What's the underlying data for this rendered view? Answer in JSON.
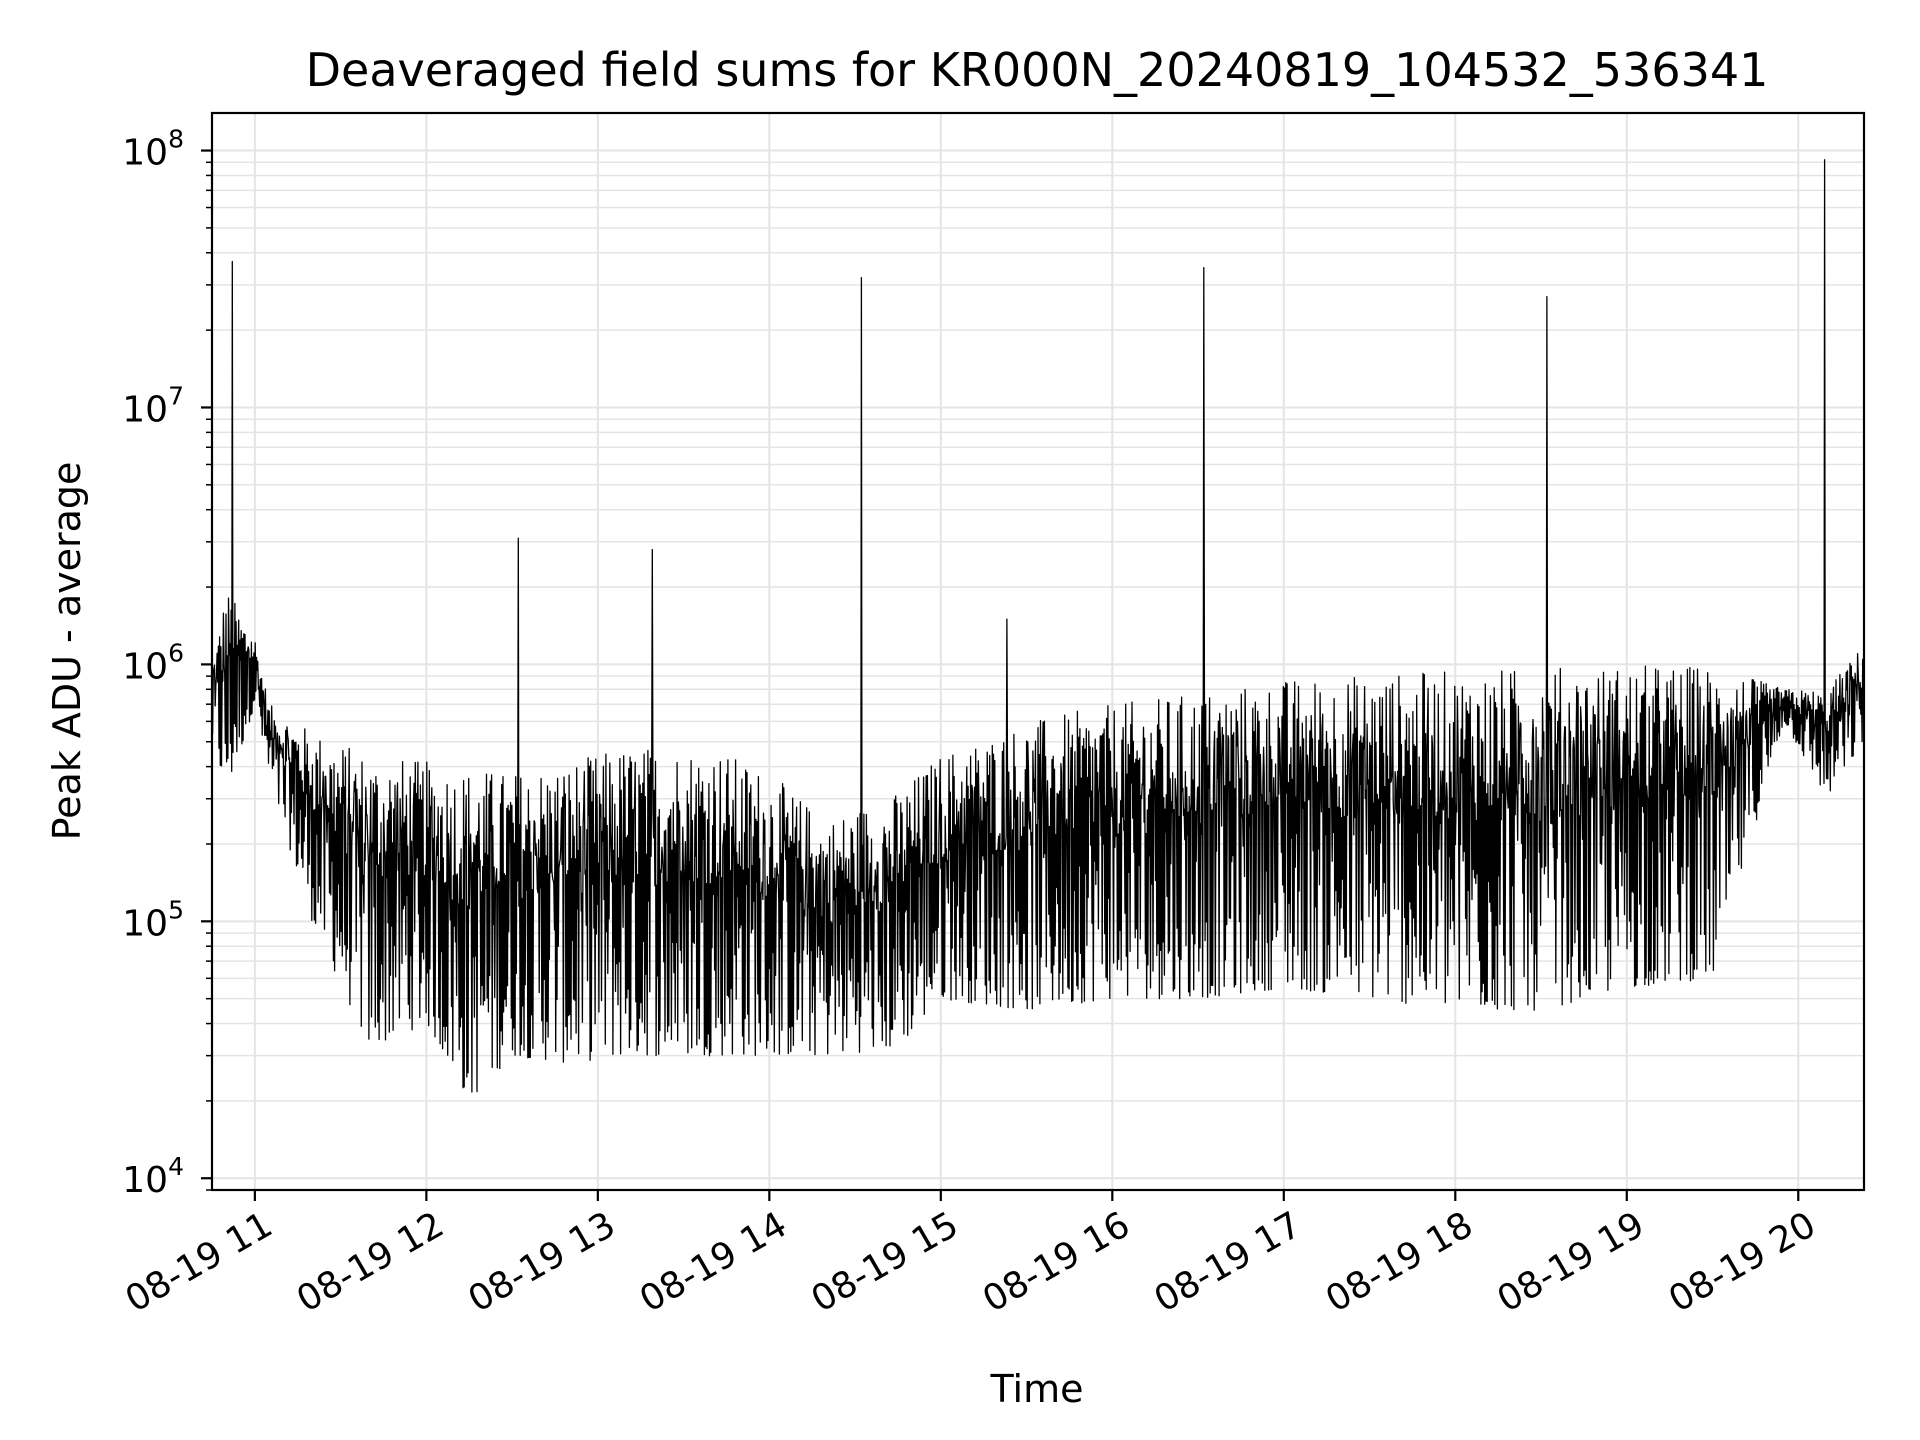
{
  "chart_data": {
    "type": "line",
    "title": "Deaveraged field sums for KR000N_20240819_104532_536341",
    "xlabel": "Time",
    "ylabel": "Peak ADU - average",
    "y_scale": "log",
    "grid": "on (major and minor)",
    "legend": "none",
    "line_color": "#000000",
    "xlim": [
      "2024-08-19 10:45",
      "2024-08-19 20:23"
    ],
    "ylim": [
      9000,
      140000000
    ],
    "x_ticks": [
      {
        "value": "2024-08-19 11:00",
        "label": "08-19 11"
      },
      {
        "value": "2024-08-19 12:00",
        "label": "08-19 12"
      },
      {
        "value": "2024-08-19 13:00",
        "label": "08-19 13"
      },
      {
        "value": "2024-08-19 14:00",
        "label": "08-19 14"
      },
      {
        "value": "2024-08-19 15:00",
        "label": "08-19 15"
      },
      {
        "value": "2024-08-19 16:00",
        "label": "08-19 16"
      },
      {
        "value": "2024-08-19 17:00",
        "label": "08-19 17"
      },
      {
        "value": "2024-08-19 18:00",
        "label": "08-19 18"
      },
      {
        "value": "2024-08-19 19:00",
        "label": "08-19 19"
      },
      {
        "value": "2024-08-19 20:00",
        "label": "08-19 20"
      }
    ],
    "y_ticks": [
      {
        "value": 10000,
        "base": "10",
        "exp": "4"
      },
      {
        "value": 100000,
        "base": "10",
        "exp": "5"
      },
      {
        "value": 1000000,
        "base": "10",
        "exp": "6"
      },
      {
        "value": 10000000,
        "base": "10",
        "exp": "7"
      },
      {
        "value": 100000000,
        "base": "10",
        "exp": "8"
      }
    ],
    "series": [
      {
        "upper_envelope": [
          {
            "x": "2024-08-19 10:45",
            "y": 1000000
          },
          {
            "x": "2024-08-19 10:50",
            "y": 2000000
          },
          {
            "x": "2024-08-19 11:00",
            "y": 1300000
          },
          {
            "x": "2024-08-19 11:05",
            "y": 700000
          },
          {
            "x": "2024-08-19 11:20",
            "y": 550000
          },
          {
            "x": "2024-08-19 11:40",
            "y": 450000
          },
          {
            "x": "2024-08-19 12:00",
            "y": 420000
          },
          {
            "x": "2024-08-19 12:30",
            "y": 380000
          },
          {
            "x": "2024-08-19 12:50",
            "y": 420000
          },
          {
            "x": "2024-08-19 13:10",
            "y": 480000
          },
          {
            "x": "2024-08-19 13:40",
            "y": 480000
          },
          {
            "x": "2024-08-19 14:00",
            "y": 380000
          },
          {
            "x": "2024-08-19 14:20",
            "y": 250000
          },
          {
            "x": "2024-08-19 14:45",
            "y": 320000
          },
          {
            "x": "2024-08-19 15:00",
            "y": 450000
          },
          {
            "x": "2024-08-19 15:30",
            "y": 600000
          },
          {
            "x": "2024-08-19 16:00",
            "y": 700000
          },
          {
            "x": "2024-08-19 16:30",
            "y": 780000
          },
          {
            "x": "2024-08-19 17:00",
            "y": 880000
          },
          {
            "x": "2024-08-19 17:30",
            "y": 920000
          },
          {
            "x": "2024-08-19 18:00",
            "y": 950000
          },
          {
            "x": "2024-08-19 18:30",
            "y": 980000
          },
          {
            "x": "2024-08-19 19:00",
            "y": 1000000
          },
          {
            "x": "2024-08-19 19:30",
            "y": 1000000
          },
          {
            "x": "2024-08-19 19:55",
            "y": 800000
          },
          {
            "x": "2024-08-19 20:10",
            "y": 800000
          },
          {
            "x": "2024-08-19 20:23",
            "y": 1200000
          }
        ],
        "lower_envelope": [
          {
            "x": "2024-08-19 10:45",
            "y": 500000
          },
          {
            "x": "2024-08-19 10:50",
            "y": 300000
          },
          {
            "x": "2024-08-19 11:00",
            "y": 700000
          },
          {
            "x": "2024-08-19 11:05",
            "y": 350000
          },
          {
            "x": "2024-08-19 11:20",
            "y": 100000
          },
          {
            "x": "2024-08-19 11:40",
            "y": 32000
          },
          {
            "x": "2024-08-19 12:00",
            "y": 40000
          },
          {
            "x": "2024-08-19 12:15",
            "y": 20000
          },
          {
            "x": "2024-08-19 12:30",
            "y": 30000
          },
          {
            "x": "2024-08-19 12:50",
            "y": 28000
          },
          {
            "x": "2024-08-19 13:10",
            "y": 30000
          },
          {
            "x": "2024-08-19 13:40",
            "y": 30000
          },
          {
            "x": "2024-08-19 14:00",
            "y": 30000
          },
          {
            "x": "2024-08-19 14:20",
            "y": 30000
          },
          {
            "x": "2024-08-19 14:45",
            "y": 32000
          },
          {
            "x": "2024-08-19 15:00",
            "y": 50000
          },
          {
            "x": "2024-08-19 15:30",
            "y": 45000
          },
          {
            "x": "2024-08-19 16:00",
            "y": 50000
          },
          {
            "x": "2024-08-19 16:30",
            "y": 50000
          },
          {
            "x": "2024-08-19 17:00",
            "y": 55000
          },
          {
            "x": "2024-08-19 17:30",
            "y": 50000
          },
          {
            "x": "2024-08-19 18:00",
            "y": 45000
          },
          {
            "x": "2024-08-19 18:30",
            "y": 45000
          },
          {
            "x": "2024-08-19 19:00",
            "y": 55000
          },
          {
            "x": "2024-08-19 19:30",
            "y": 60000
          },
          {
            "x": "2024-08-19 19:55",
            "y": 600000
          },
          {
            "x": "2024-08-19 20:10",
            "y": 300000
          },
          {
            "x": "2024-08-19 20:23",
            "y": 500000
          }
        ],
        "spikes": [
          {
            "x": "2024-08-19 10:52",
            "y": 37000000
          },
          {
            "x": "2024-08-19 12:32",
            "y": 3100000
          },
          {
            "x": "2024-08-19 13:19",
            "y": 2800000
          },
          {
            "x": "2024-08-19 14:32",
            "y": 32000000
          },
          {
            "x": "2024-08-19 15:23",
            "y": 1500000
          },
          {
            "x": "2024-08-19 16:32",
            "y": 35000000
          },
          {
            "x": "2024-08-19 18:32",
            "y": 27000000
          },
          {
            "x": "2024-08-19 20:09",
            "y": 92000000
          }
        ]
      }
    ]
  }
}
